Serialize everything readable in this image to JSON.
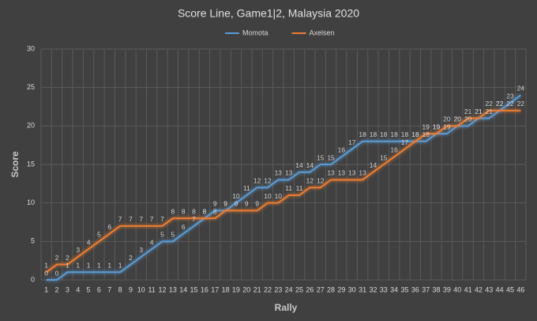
{
  "chart_data": {
    "type": "line",
    "title": "Score Line, Game1|2, Malaysia 2020",
    "x_label": "Rally",
    "y_label": "Score",
    "categories": [
      1,
      2,
      3,
      4,
      5,
      6,
      7,
      8,
      9,
      10,
      11,
      12,
      13,
      14,
      15,
      16,
      17,
      18,
      19,
      20,
      21,
      22,
      23,
      24,
      25,
      26,
      27,
      28,
      29,
      30,
      31,
      32,
      33,
      34,
      35,
      36,
      37,
      38,
      39,
      40,
      41,
      42,
      43,
      44,
      45,
      46
    ],
    "series": [
      {
        "name": "Momota",
        "color": "#5b9bd5",
        "values": [
          0,
          0,
          1,
          1,
          1,
          1,
          1,
          1,
          2,
          3,
          4,
          5,
          5,
          6,
          7,
          8,
          9,
          9,
          10,
          11,
          12,
          12,
          13,
          13,
          14,
          14,
          15,
          15,
          16,
          17,
          18,
          18,
          18,
          18,
          18,
          18,
          18,
          19,
          19,
          20,
          20,
          21,
          21,
          22,
          23,
          24
        ]
      },
      {
        "name": "Axelsen",
        "color": "#ed7d31",
        "values": [
          1,
          2,
          2,
          3,
          4,
          5,
          6,
          7,
          7,
          7,
          7,
          7,
          8,
          8,
          8,
          8,
          8,
          9,
          9,
          9,
          9,
          10,
          10,
          11,
          11,
          12,
          12,
          13,
          13,
          13,
          13,
          14,
          15,
          16,
          17,
          18,
          19,
          19,
          20,
          20,
          21,
          21,
          22,
          22,
          22,
          22
        ]
      }
    ],
    "ylim": [
      0,
      30
    ],
    "yticks": [
      0,
      5,
      10,
      15,
      20,
      25,
      30
    ],
    "grid": true,
    "legend": "top",
    "data_labels": true
  }
}
